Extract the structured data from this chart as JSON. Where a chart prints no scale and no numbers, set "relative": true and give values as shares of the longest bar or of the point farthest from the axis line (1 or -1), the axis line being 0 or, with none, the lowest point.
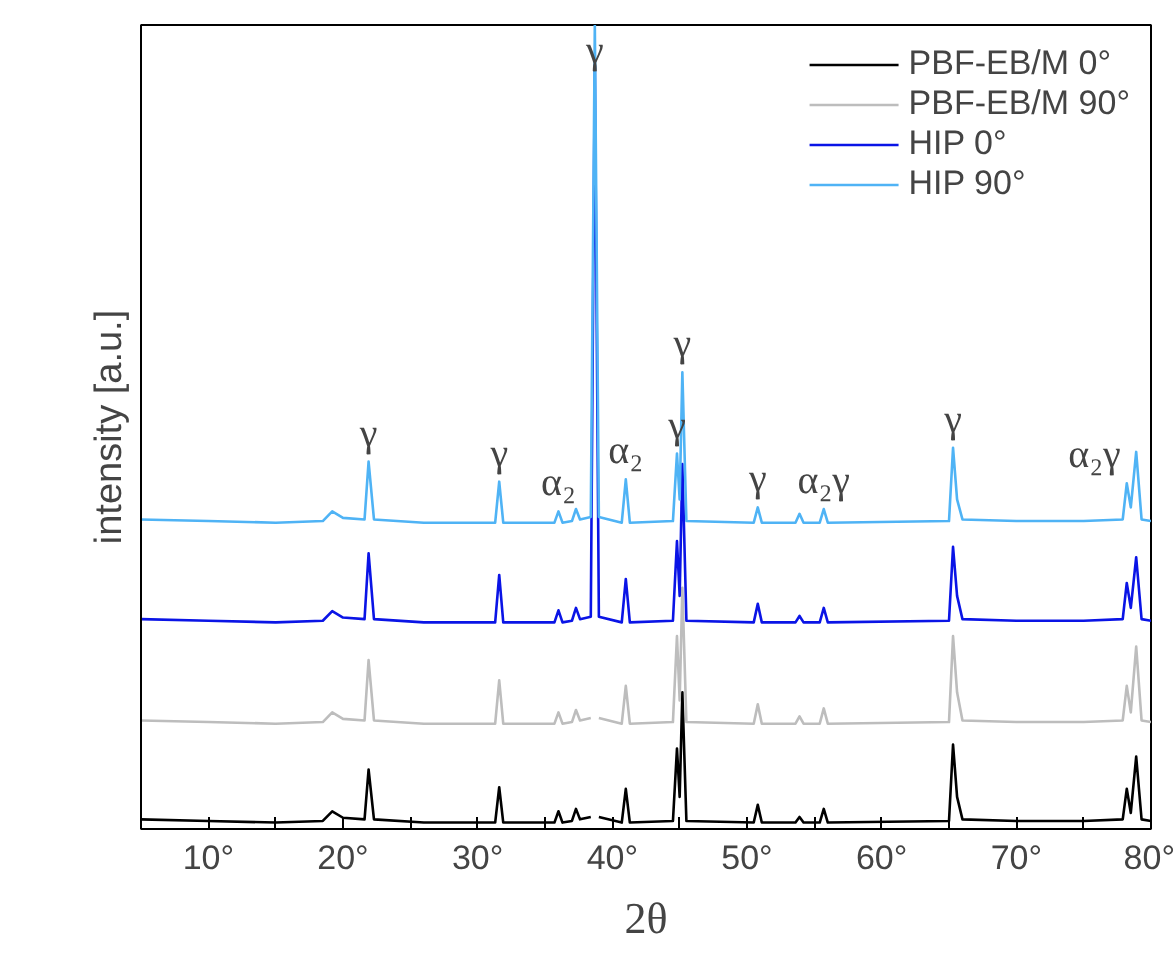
{
  "chart_data": {
    "type": "line",
    "xlabel": "2θ",
    "ylabel": "intensity [a.u.]",
    "relative": true,
    "legend": "top right",
    "grid": false,
    "xlim": [
      5,
      80
    ],
    "xticks": [
      {
        "value": 5,
        "label": null
      },
      {
        "value": 10,
        "label": "10°"
      },
      {
        "value": 15,
        "label": null
      },
      {
        "value": 20,
        "label": "20°"
      },
      {
        "value": 25,
        "label": null
      },
      {
        "value": 30,
        "label": "30°"
      },
      {
        "value": 35,
        "label": null
      },
      {
        "value": 40,
        "label": "40°"
      },
      {
        "value": 45,
        "label": null
      },
      {
        "value": 50,
        "label": "50°"
      },
      {
        "value": 55,
        "label": null
      },
      {
        "value": 60,
        "label": "60°"
      },
      {
        "value": 65,
        "label": null
      },
      {
        "value": 70,
        "label": "70°"
      },
      {
        "value": 75,
        "label": null
      },
      {
        "value": 80,
        "label": "80°"
      }
    ],
    "x": [
      5,
      10,
      15,
      18.5,
      19.2,
      20,
      21.6,
      21.9,
      22.3,
      26,
      31.3,
      31.6,
      31.9,
      35.7,
      36,
      36.3,
      37,
      37.3,
      37.6,
      38.4,
      38.7,
      39,
      40.7,
      41,
      41.3,
      44.5,
      44.8,
      45.0,
      45.2,
      45.5,
      50.5,
      50.8,
      51.1,
      53.6,
      53.9,
      54.2,
      55.4,
      55.7,
      56,
      65,
      65.3,
      65.6,
      66,
      70,
      75,
      77.9,
      78.2,
      78.5,
      78.9,
      79.3,
      80
    ],
    "series": [
      {
        "name": "PBF-EB/M 0°",
        "color": "#000000",
        "values": [
          0.012,
          0.01,
          0.008,
          0.01,
          0.022,
          0.014,
          0.012,
          0.074,
          0.012,
          0.008,
          0.008,
          0.052,
          0.008,
          0.008,
          0.022,
          0.008,
          0.01,
          0.025,
          0.012,
          0.015,
          null,
          0.015,
          0.008,
          0.05,
          0.008,
          0.01,
          0.1,
          0.04,
          0.17,
          0.01,
          0.008,
          0.03,
          0.008,
          0.008,
          0.015,
          0.008,
          0.008,
          0.025,
          0.008,
          0.01,
          0.105,
          0.04,
          0.012,
          0.01,
          0.01,
          0.012,
          0.05,
          0.02,
          0.09,
          0.012,
          0.01
        ]
      },
      {
        "name": "PBF-EB/M 90°",
        "color": "#bdbdbd",
        "values": [
          0.135,
          0.133,
          0.131,
          0.133,
          0.145,
          0.137,
          0.135,
          0.21,
          0.135,
          0.131,
          0.131,
          0.185,
          0.131,
          0.131,
          0.145,
          0.131,
          0.133,
          0.148,
          0.135,
          0.138,
          null,
          0.138,
          0.131,
          0.178,
          0.131,
          0.133,
          0.24,
          0.16,
          0.3,
          0.133,
          0.131,
          0.155,
          0.131,
          0.131,
          0.14,
          0.131,
          0.131,
          0.15,
          0.131,
          0.133,
          0.24,
          0.17,
          0.135,
          0.133,
          0.133,
          0.135,
          0.178,
          0.145,
          0.227,
          0.135,
          0.133
        ]
      },
      {
        "name": "HIP 0°",
        "color": "#0a14e6",
        "values": [
          0.261,
          0.259,
          0.257,
          0.259,
          0.271,
          0.263,
          0.261,
          0.343,
          0.261,
          0.257,
          0.257,
          0.316,
          0.257,
          0.257,
          0.272,
          0.257,
          0.259,
          0.275,
          0.261,
          0.264,
          0.95,
          0.264,
          0.257,
          0.311,
          0.257,
          0.259,
          0.358,
          0.29,
          0.454,
          0.259,
          0.257,
          0.28,
          0.257,
          0.257,
          0.265,
          0.257,
          0.257,
          0.275,
          0.257,
          0.259,
          0.351,
          0.29,
          0.261,
          0.259,
          0.259,
          0.261,
          0.306,
          0.275,
          0.338,
          0.261,
          0.259
        ]
      },
      {
        "name": "HIP 90°",
        "color": "#4fb3f5",
        "values": [
          0.385,
          0.383,
          0.381,
          0.383,
          0.395,
          0.387,
          0.385,
          0.457,
          0.385,
          0.381,
          0.381,
          0.432,
          0.381,
          0.381,
          0.395,
          0.381,
          0.383,
          0.398,
          0.385,
          0.388,
          1,
          0.388,
          0.381,
          0.435,
          0.381,
          0.383,
          0.467,
          0.41,
          0.568,
          0.383,
          0.381,
          0.4,
          0.381,
          0.381,
          0.392,
          0.381,
          0.381,
          0.398,
          0.381,
          0.383,
          0.474,
          0.41,
          0.385,
          0.383,
          0.383,
          0.385,
          0.43,
          0.4,
          0.469,
          0.385,
          0.383
        ]
      }
    ],
    "annotations": [
      {
        "text": "γ",
        "x": 21.9,
        "y": 0.457
      },
      {
        "text": "γ",
        "x": 31.6,
        "y": 0.432
      },
      {
        "text": "α₂",
        "x": 36,
        "y": 0.395
      },
      {
        "text": "α₂",
        "x": 41,
        "y": 0.435
      },
      {
        "text": "γ",
        "x": 44.8,
        "y": 0.467
      },
      {
        "text": "γ",
        "x": 45.2,
        "y": 0.568
      },
      {
        "text": "γ",
        "x": 38.7,
        "y": 1
      },
      {
        "text": "γ",
        "x": 50.8,
        "y": 0.4
      },
      {
        "text": "α₂γ",
        "x": 55.7,
        "y": 0.398
      },
      {
        "text": "γ",
        "x": 65.3,
        "y": 0.474
      },
      {
        "text": "α₂γ",
        "x": 78.2,
        "y": 0.43
      }
    ]
  }
}
